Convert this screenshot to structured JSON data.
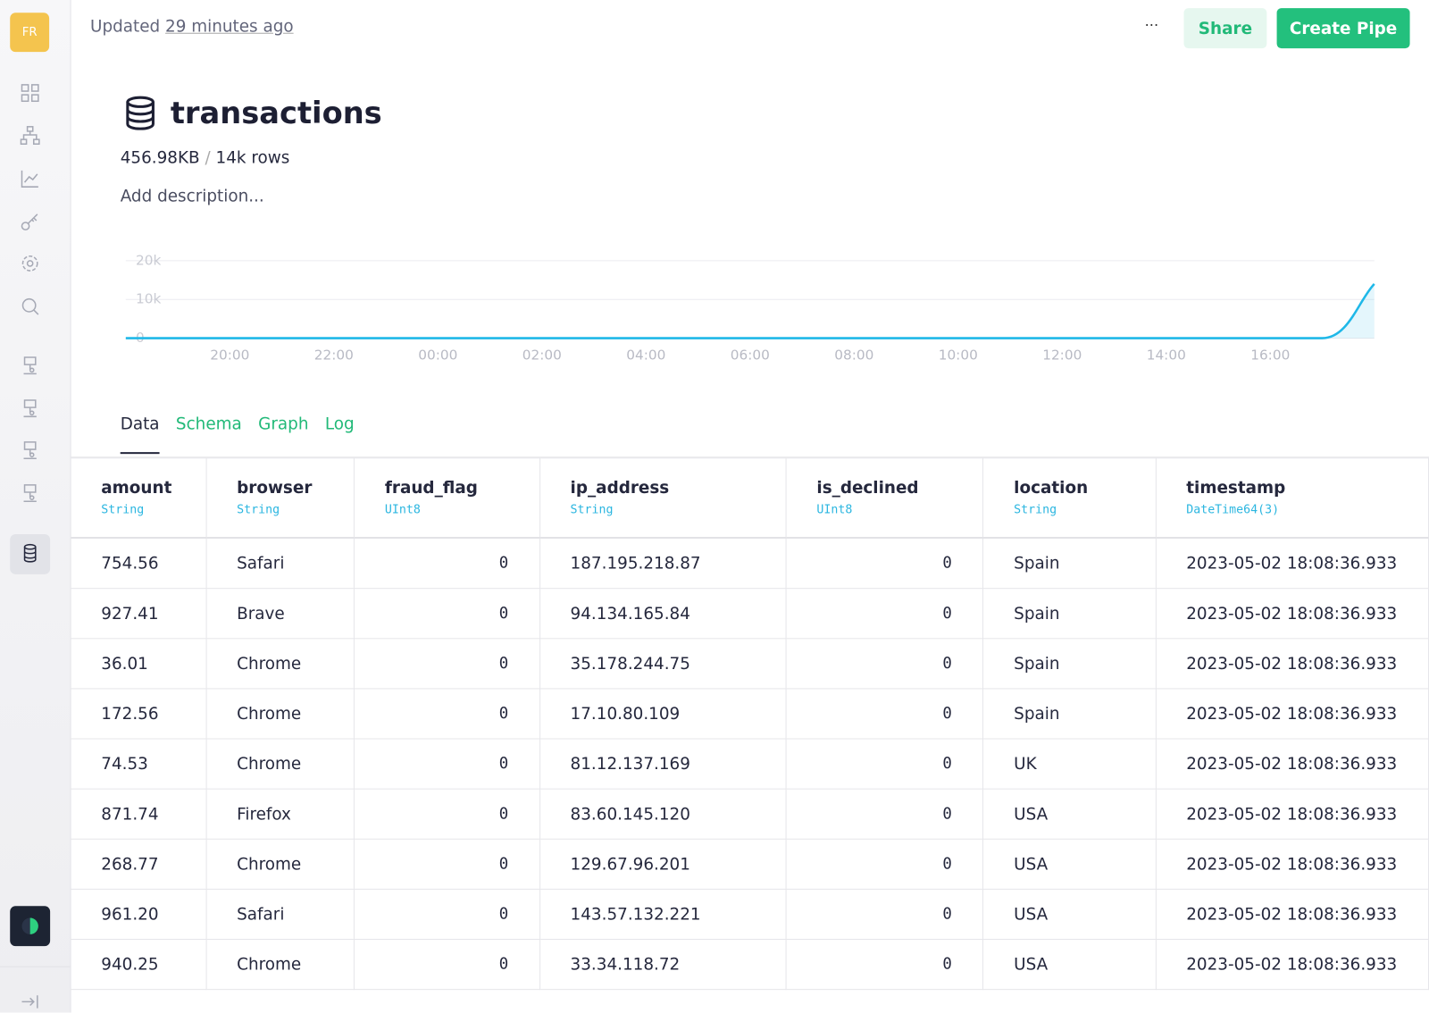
{
  "sidebar": {
    "avatar": "FR"
  },
  "header": {
    "updated_prefix": "Updated",
    "updated_time": "29 minutes ago",
    "more": "···",
    "share": "Share",
    "create_pipe": "Create Pipe"
  },
  "datasource": {
    "name": "transactions",
    "size": "456.98KB",
    "separator": "/",
    "rows": "14k rows",
    "description": "Add description..."
  },
  "activity_chart": {
    "type": "area",
    "color": "#1fb8e8",
    "categories": [
      null,
      null,
      "20:00",
      null,
      "22:00",
      null,
      "00:00",
      null,
      "02:00",
      null,
      "04:00",
      null,
      "06:00",
      null,
      "08:00",
      null,
      "10:00",
      null,
      "12:00",
      null,
      "14:00",
      null,
      "16:00",
      null,
      null
    ],
    "values": [
      0,
      0,
      0,
      0,
      0,
      0,
      0,
      0,
      0,
      0,
      0,
      0,
      0,
      0,
      0,
      0,
      0,
      0,
      0,
      0,
      0,
      0,
      0,
      0,
      14000
    ],
    "ylim": [
      0,
      20000
    ],
    "yticks": [
      {
        "value": 0,
        "label": "0"
      },
      {
        "value": 10000,
        "label": "10k"
      },
      {
        "value": 20000,
        "label": "20k"
      }
    ],
    "grid": true
  },
  "tabs": [
    "Data",
    "Schema",
    "Graph",
    "Log"
  ],
  "table": {
    "columns": [
      {
        "name": "amount",
        "type": "String"
      },
      {
        "name": "browser",
        "type": "String"
      },
      {
        "name": "fraud_flag",
        "type": "UInt8"
      },
      {
        "name": "ip_address",
        "type": "String"
      },
      {
        "name": "is_declined",
        "type": "UInt8"
      },
      {
        "name": "location",
        "type": "String"
      },
      {
        "name": "timestamp",
        "type": "DateTime64(3)"
      }
    ],
    "rows": [
      [
        "754.56",
        "Safari",
        "0",
        "187.195.218.87",
        "0",
        "Spain",
        "2023-05-02 18:08:36.933"
      ],
      [
        "927.41",
        "Brave",
        "0",
        "94.134.165.84",
        "0",
        "Spain",
        "2023-05-02 18:08:36.933"
      ],
      [
        "36.01",
        "Chrome",
        "0",
        "35.178.244.75",
        "0",
        "Spain",
        "2023-05-02 18:08:36.933"
      ],
      [
        "172.56",
        "Chrome",
        "0",
        "17.10.80.109",
        "0",
        "Spain",
        "2023-05-02 18:08:36.933"
      ],
      [
        "74.53",
        "Chrome",
        "0",
        "81.12.137.169",
        "0",
        "UK",
        "2023-05-02 18:08:36.933"
      ],
      [
        "871.74",
        "Firefox",
        "0",
        "83.60.145.120",
        "0",
        "USA",
        "2023-05-02 18:08:36.933"
      ],
      [
        "268.77",
        "Chrome",
        "0",
        "129.67.96.201",
        "0",
        "USA",
        "2023-05-02 18:08:36.933"
      ],
      [
        "961.20",
        "Safari",
        "0",
        "143.57.132.221",
        "0",
        "USA",
        "2023-05-02 18:08:36.933"
      ],
      [
        "940.25",
        "Chrome",
        "0",
        "33.34.118.72",
        "0",
        "USA",
        "2023-05-02 18:08:36.933"
      ]
    ]
  }
}
